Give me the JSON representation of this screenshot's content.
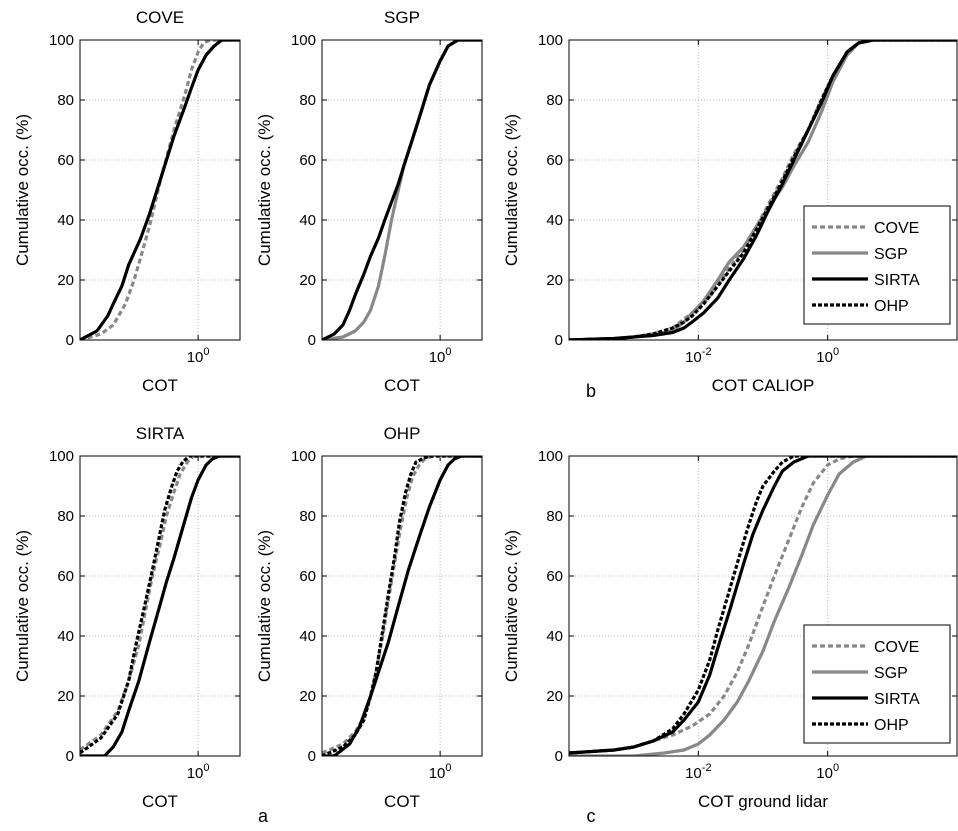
{
  "figure": {
    "panel_tags": [
      "a",
      "b",
      "c"
    ]
  },
  "styles": {
    "COVE": {
      "color": "#888888",
      "dash": "5,3",
      "width": 3.2
    },
    "SGP": {
      "color": "#888888",
      "dash": "",
      "width": 3.2
    },
    "SIRTA": {
      "color": "#000000",
      "dash": "",
      "width": 3.2
    },
    "OHP": {
      "color": "#000000",
      "dash": "4,2",
      "width": 3.2
    }
  },
  "chart_data": [
    {
      "type": "line",
      "title": "COVE",
      "xlabel": "COT",
      "ylabel": "Cumulative occ. (%)",
      "x_scale": "log",
      "xlim": [
        0.02,
        4
      ],
      "ylim": [
        0,
        100
      ],
      "yticks": [
        "0",
        "20",
        "40",
        "60",
        "80",
        "100"
      ],
      "xticks": [
        {
          "value": 1,
          "base": "10",
          "exp": "0"
        }
      ],
      "grid": true,
      "legend": "none",
      "series": [
        {
          "key": "COVE",
          "x": [
            0.02,
            0.04,
            0.06,
            0.09,
            0.12,
            0.16,
            0.2,
            0.3,
            0.45,
            0.65,
            0.8,
            1.0,
            1.2,
            1.5,
            1.8,
            4
          ],
          "y": [
            0,
            2,
            5,
            12,
            20,
            30,
            38,
            55,
            70,
            82,
            90,
            96,
            99,
            100,
            100,
            100
          ]
        },
        {
          "key": "SIRTA",
          "x": [
            0.02,
            0.035,
            0.05,
            0.06,
            0.08,
            0.1,
            0.15,
            0.2,
            0.3,
            0.45,
            0.65,
            0.8,
            1.0,
            1.3,
            1.7,
            2.2,
            4
          ],
          "y": [
            0,
            3,
            8,
            12,
            18,
            25,
            34,
            42,
            55,
            68,
            78,
            84,
            90,
            95,
            98,
            100,
            100
          ]
        }
      ]
    },
    {
      "type": "line",
      "title": "SGP",
      "xlabel": "COT",
      "ylabel": "Cumulative occ. (%)",
      "x_scale": "log",
      "xlim": [
        0.02,
        4
      ],
      "ylim": [
        0,
        100
      ],
      "yticks": [
        "0",
        "20",
        "40",
        "60",
        "80",
        "100"
      ],
      "xticks": [
        {
          "value": 1,
          "base": "10",
          "exp": "0"
        }
      ],
      "grid": true,
      "legend": "none",
      "series": [
        {
          "key": "SGP",
          "x": [
            0.02,
            0.04,
            0.06,
            0.08,
            0.1,
            0.13,
            0.16,
            0.2,
            0.25,
            0.3,
            0.4,
            0.5,
            0.7,
            1.0,
            1.3,
            1.8,
            4
          ],
          "y": [
            0,
            1,
            3,
            6,
            10,
            18,
            28,
            40,
            50,
            58,
            67,
            74,
            85,
            93,
            98,
            100,
            100
          ]
        },
        {
          "key": "SIRTA",
          "x": [
            0.02,
            0.03,
            0.04,
            0.05,
            0.06,
            0.08,
            0.1,
            0.13,
            0.16,
            0.2,
            0.25,
            0.3,
            0.4,
            0.5,
            0.7,
            1.0,
            1.3,
            1.8,
            4
          ],
          "y": [
            0,
            2,
            5,
            10,
            15,
            22,
            28,
            34,
            40,
            46,
            52,
            58,
            67,
            74,
            85,
            93,
            98,
            100,
            100
          ]
        }
      ]
    },
    {
      "type": "line",
      "title": "SIRTA",
      "xlabel": "COT",
      "ylabel": "Cumulative occ. (%)",
      "x_scale": "log",
      "xlim": [
        0.02,
        4
      ],
      "ylim": [
        0,
        100
      ],
      "yticks": [
        "0",
        "20",
        "40",
        "60",
        "80",
        "100"
      ],
      "xticks": [
        {
          "value": 1,
          "base": "10",
          "exp": "0"
        }
      ],
      "grid": true,
      "legend": "none",
      "series": [
        {
          "key": "COVE",
          "x": [
            0.02,
            0.04,
            0.07,
            0.1,
            0.14,
            0.18,
            0.22,
            0.28,
            0.35,
            0.45,
            0.55,
            0.7,
            0.85,
            1.1,
            4
          ],
          "y": [
            2,
            7,
            15,
            25,
            37,
            50,
            60,
            70,
            80,
            88,
            94,
            98,
            100,
            100,
            100
          ]
        },
        {
          "key": "OHP",
          "x": [
            0.02,
            0.04,
            0.07,
            0.1,
            0.13,
            0.17,
            0.22,
            0.27,
            0.33,
            0.42,
            0.5,
            0.6,
            0.75,
            1.0,
            4
          ],
          "y": [
            1,
            6,
            14,
            25,
            38,
            50,
            62,
            72,
            82,
            90,
            95,
            98,
            100,
            100,
            100
          ]
        },
        {
          "key": "SIRTA",
          "x": [
            0.02,
            0.045,
            0.06,
            0.08,
            0.1,
            0.14,
            0.2,
            0.28,
            0.35,
            0.45,
            0.6,
            0.8,
            1.0,
            1.3,
            1.6,
            2.0,
            4
          ],
          "y": [
            0,
            0,
            3,
            8,
            15,
            25,
            38,
            50,
            58,
            66,
            76,
            86,
            92,
            97,
            99,
            100,
            100
          ]
        }
      ]
    },
    {
      "type": "line",
      "title": "OHP",
      "xlabel": "COT",
      "ylabel": "Cumulative occ. (%)",
      "x_scale": "log",
      "xlim": [
        0.02,
        4
      ],
      "ylim": [
        0,
        100
      ],
      "yticks": [
        "0",
        "20",
        "40",
        "60",
        "80",
        "100"
      ],
      "xticks": [
        {
          "value": 1,
          "base": "10",
          "exp": "0"
        }
      ],
      "grid": true,
      "legend": "none",
      "series": [
        {
          "key": "COVE",
          "x": [
            0.02,
            0.04,
            0.06,
            0.08,
            0.1,
            0.12,
            0.15,
            0.18,
            0.22,
            0.27,
            0.33,
            0.4,
            0.5,
            0.6,
            0.8,
            4
          ],
          "y": [
            1,
            4,
            8,
            13,
            20,
            28,
            40,
            52,
            64,
            76,
            86,
            93,
            97,
            99,
            100,
            100
          ]
        },
        {
          "key": "OHP",
          "x": [
            0.02,
            0.04,
            0.06,
            0.08,
            0.1,
            0.12,
            0.15,
            0.18,
            0.22,
            0.26,
            0.32,
            0.38,
            0.45,
            0.55,
            0.7,
            4
          ],
          "y": [
            0,
            3,
            7,
            12,
            20,
            28,
            42,
            54,
            66,
            78,
            88,
            94,
            98,
            99,
            100,
            100
          ]
        },
        {
          "key": "SIRTA",
          "x": [
            0.02,
            0.03,
            0.05,
            0.07,
            0.1,
            0.13,
            0.18,
            0.25,
            0.35,
            0.5,
            0.7,
            1.0,
            1.3,
            1.6,
            2.0,
            4
          ],
          "y": [
            0,
            0,
            4,
            10,
            20,
            28,
            38,
            50,
            62,
            73,
            83,
            92,
            97,
            99,
            100,
            100
          ]
        }
      ]
    },
    {
      "type": "line",
      "title": "",
      "xlabel": "COT CALIOP",
      "ylabel": "Cumulative occ. (%)",
      "x_scale": "log",
      "xlim": [
        0.0001,
        100
      ],
      "ylim": [
        0,
        100
      ],
      "yticks": [
        "0",
        "20",
        "40",
        "60",
        "80",
        "100"
      ],
      "xticks": [
        {
          "value": 0.01,
          "base": "10",
          "exp": "-2"
        },
        {
          "value": 1,
          "base": "10",
          "exp": "0"
        }
      ],
      "grid": true,
      "legend": "center-right",
      "panel_tag": "b",
      "series": [
        {
          "key": "COVE",
          "x": [
            0.0001,
            0.0005,
            0.001,
            0.002,
            0.004,
            0.006,
            0.008,
            0.012,
            0.02,
            0.03,
            0.05,
            0.08,
            0.12,
            0.2,
            0.3,
            0.5,
            0.8,
            1.2,
            2,
            3,
            5,
            100
          ],
          "y": [
            0,
            0.5,
            1,
            2,
            4,
            7,
            9,
            12,
            18,
            24,
            30,
            38,
            45,
            54,
            62,
            70,
            80,
            88,
            96,
            99,
            100,
            100
          ]
        },
        {
          "key": "SGP",
          "x": [
            0.0001,
            0.0005,
            0.001,
            0.002,
            0.004,
            0.006,
            0.008,
            0.012,
            0.02,
            0.03,
            0.05,
            0.08,
            0.12,
            0.2,
            0.3,
            0.5,
            0.8,
            1.2,
            2,
            3,
            5,
            100
          ],
          "y": [
            0,
            0.5,
            1,
            2,
            3,
            6,
            9,
            13,
            20,
            26,
            31,
            38,
            44,
            51,
            58,
            66,
            76,
            86,
            95,
            99,
            100,
            100
          ]
        },
        {
          "key": "SIRTA",
          "x": [
            0.0001,
            0.0005,
            0.001,
            0.002,
            0.004,
            0.006,
            0.008,
            0.012,
            0.02,
            0.03,
            0.05,
            0.08,
            0.12,
            0.2,
            0.3,
            0.5,
            0.8,
            1.2,
            2,
            3,
            5,
            100
          ],
          "y": [
            0,
            0.5,
            1,
            1.5,
            2.5,
            4,
            6,
            9,
            14,
            20,
            27,
            35,
            43,
            52,
            60,
            70,
            79,
            88,
            96,
            99,
            100,
            100
          ]
        },
        {
          "key": "OHP",
          "x": [
            0.0001,
            0.0005,
            0.001,
            0.002,
            0.004,
            0.006,
            0.008,
            0.012,
            0.02,
            0.03,
            0.05,
            0.08,
            0.12,
            0.2,
            0.3,
            0.5,
            0.8,
            1.2,
            2,
            3,
            5,
            100
          ],
          "y": [
            0,
            0.5,
            1,
            2,
            4,
            6,
            8,
            12,
            18,
            23,
            29,
            37,
            44,
            53,
            61,
            70,
            80,
            88,
            96,
            99,
            100,
            100
          ]
        }
      ]
    },
    {
      "type": "line",
      "title": "",
      "xlabel": "COT ground lidar",
      "ylabel": "Cumulative occ. (%)",
      "x_scale": "log",
      "xlim": [
        0.0001,
        100
      ],
      "ylim": [
        0,
        100
      ],
      "yticks": [
        "0",
        "20",
        "40",
        "60",
        "80",
        "100"
      ],
      "xticks": [
        {
          "value": 0.01,
          "base": "10",
          "exp": "-2"
        },
        {
          "value": 1,
          "base": "10",
          "exp": "0"
        }
      ],
      "grid": true,
      "legend": "bottom-right",
      "panel_tag": "c",
      "series": [
        {
          "key": "COVE",
          "x": [
            0.0001,
            0.0005,
            0.001,
            0.002,
            0.004,
            0.008,
            0.015,
            0.025,
            0.04,
            0.06,
            0.1,
            0.15,
            0.25,
            0.4,
            0.6,
            1.0,
            1.5,
            2.5,
            100
          ],
          "y": [
            1,
            2,
            3,
            5,
            7,
            10,
            14,
            20,
            28,
            37,
            50,
            60,
            72,
            83,
            91,
            97,
            99,
            100,
            100
          ]
        },
        {
          "key": "SGP",
          "x": [
            0.0001,
            0.001,
            0.003,
            0.006,
            0.01,
            0.015,
            0.025,
            0.04,
            0.06,
            0.1,
            0.15,
            0.25,
            0.4,
            0.6,
            1.0,
            1.5,
            2.5,
            4,
            100
          ],
          "y": [
            0,
            0,
            1,
            2,
            4,
            7,
            12,
            18,
            25,
            35,
            45,
            56,
            67,
            77,
            87,
            94,
            98,
            100,
            100
          ]
        },
        {
          "key": "SIRTA",
          "x": [
            0.0001,
            0.0005,
            0.001,
            0.002,
            0.004,
            0.006,
            0.01,
            0.015,
            0.02,
            0.03,
            0.05,
            0.07,
            0.1,
            0.15,
            0.2,
            0.3,
            0.5,
            0.7,
            1.0,
            100
          ],
          "y": [
            1,
            2,
            3,
            5,
            8,
            12,
            18,
            27,
            36,
            48,
            64,
            74,
            82,
            90,
            95,
            98,
            100,
            100,
            100,
            100
          ]
        },
        {
          "key": "OHP",
          "x": [
            0.0001,
            0.0005,
            0.001,
            0.002,
            0.004,
            0.006,
            0.01,
            0.015,
            0.02,
            0.03,
            0.045,
            0.06,
            0.08,
            0.1,
            0.15,
            0.2,
            0.3,
            0.5,
            100
          ],
          "y": [
            1,
            2,
            3,
            5,
            9,
            14,
            22,
            32,
            42,
            55,
            68,
            77,
            85,
            90,
            95,
            98,
            100,
            100,
            100
          ]
        }
      ]
    }
  ]
}
